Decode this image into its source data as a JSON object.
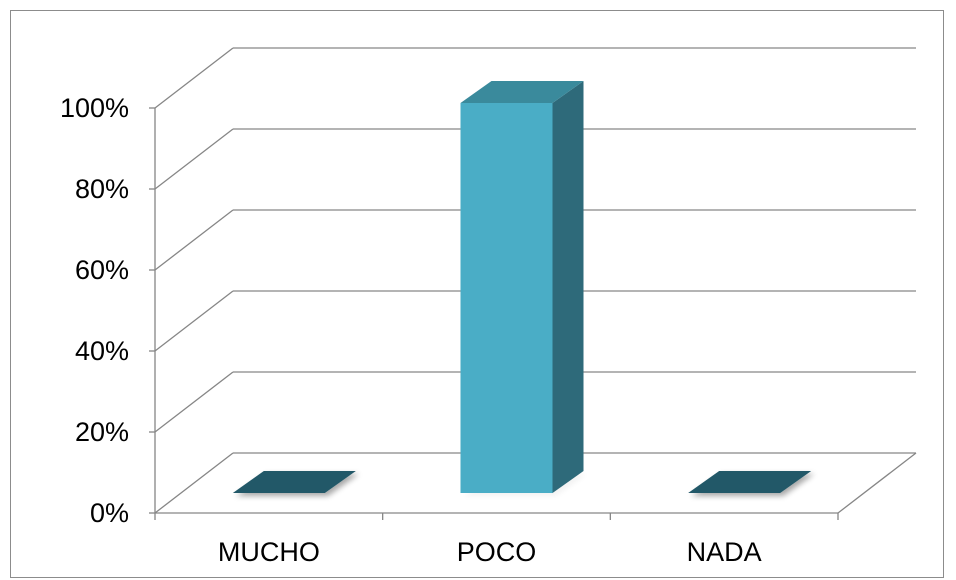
{
  "chart_data": {
    "type": "bar",
    "style": "3d-column",
    "categories": [
      "MUCHO",
      "POCO",
      "NADA"
    ],
    "values": [
      0,
      100,
      0
    ],
    "y_ticks": [
      "0%",
      "20%",
      "40%",
      "60%",
      "80%",
      "100%"
    ],
    "ylim": [
      0,
      100
    ],
    "grid": true,
    "legend": "none",
    "colors": {
      "bar_front": "#4AADC6",
      "bar_side": "#2E6A7A",
      "bar_top": "#3A8A9C",
      "zero_bar": "#245968",
      "grid": "#868686",
      "axis": "#868686"
    }
  }
}
